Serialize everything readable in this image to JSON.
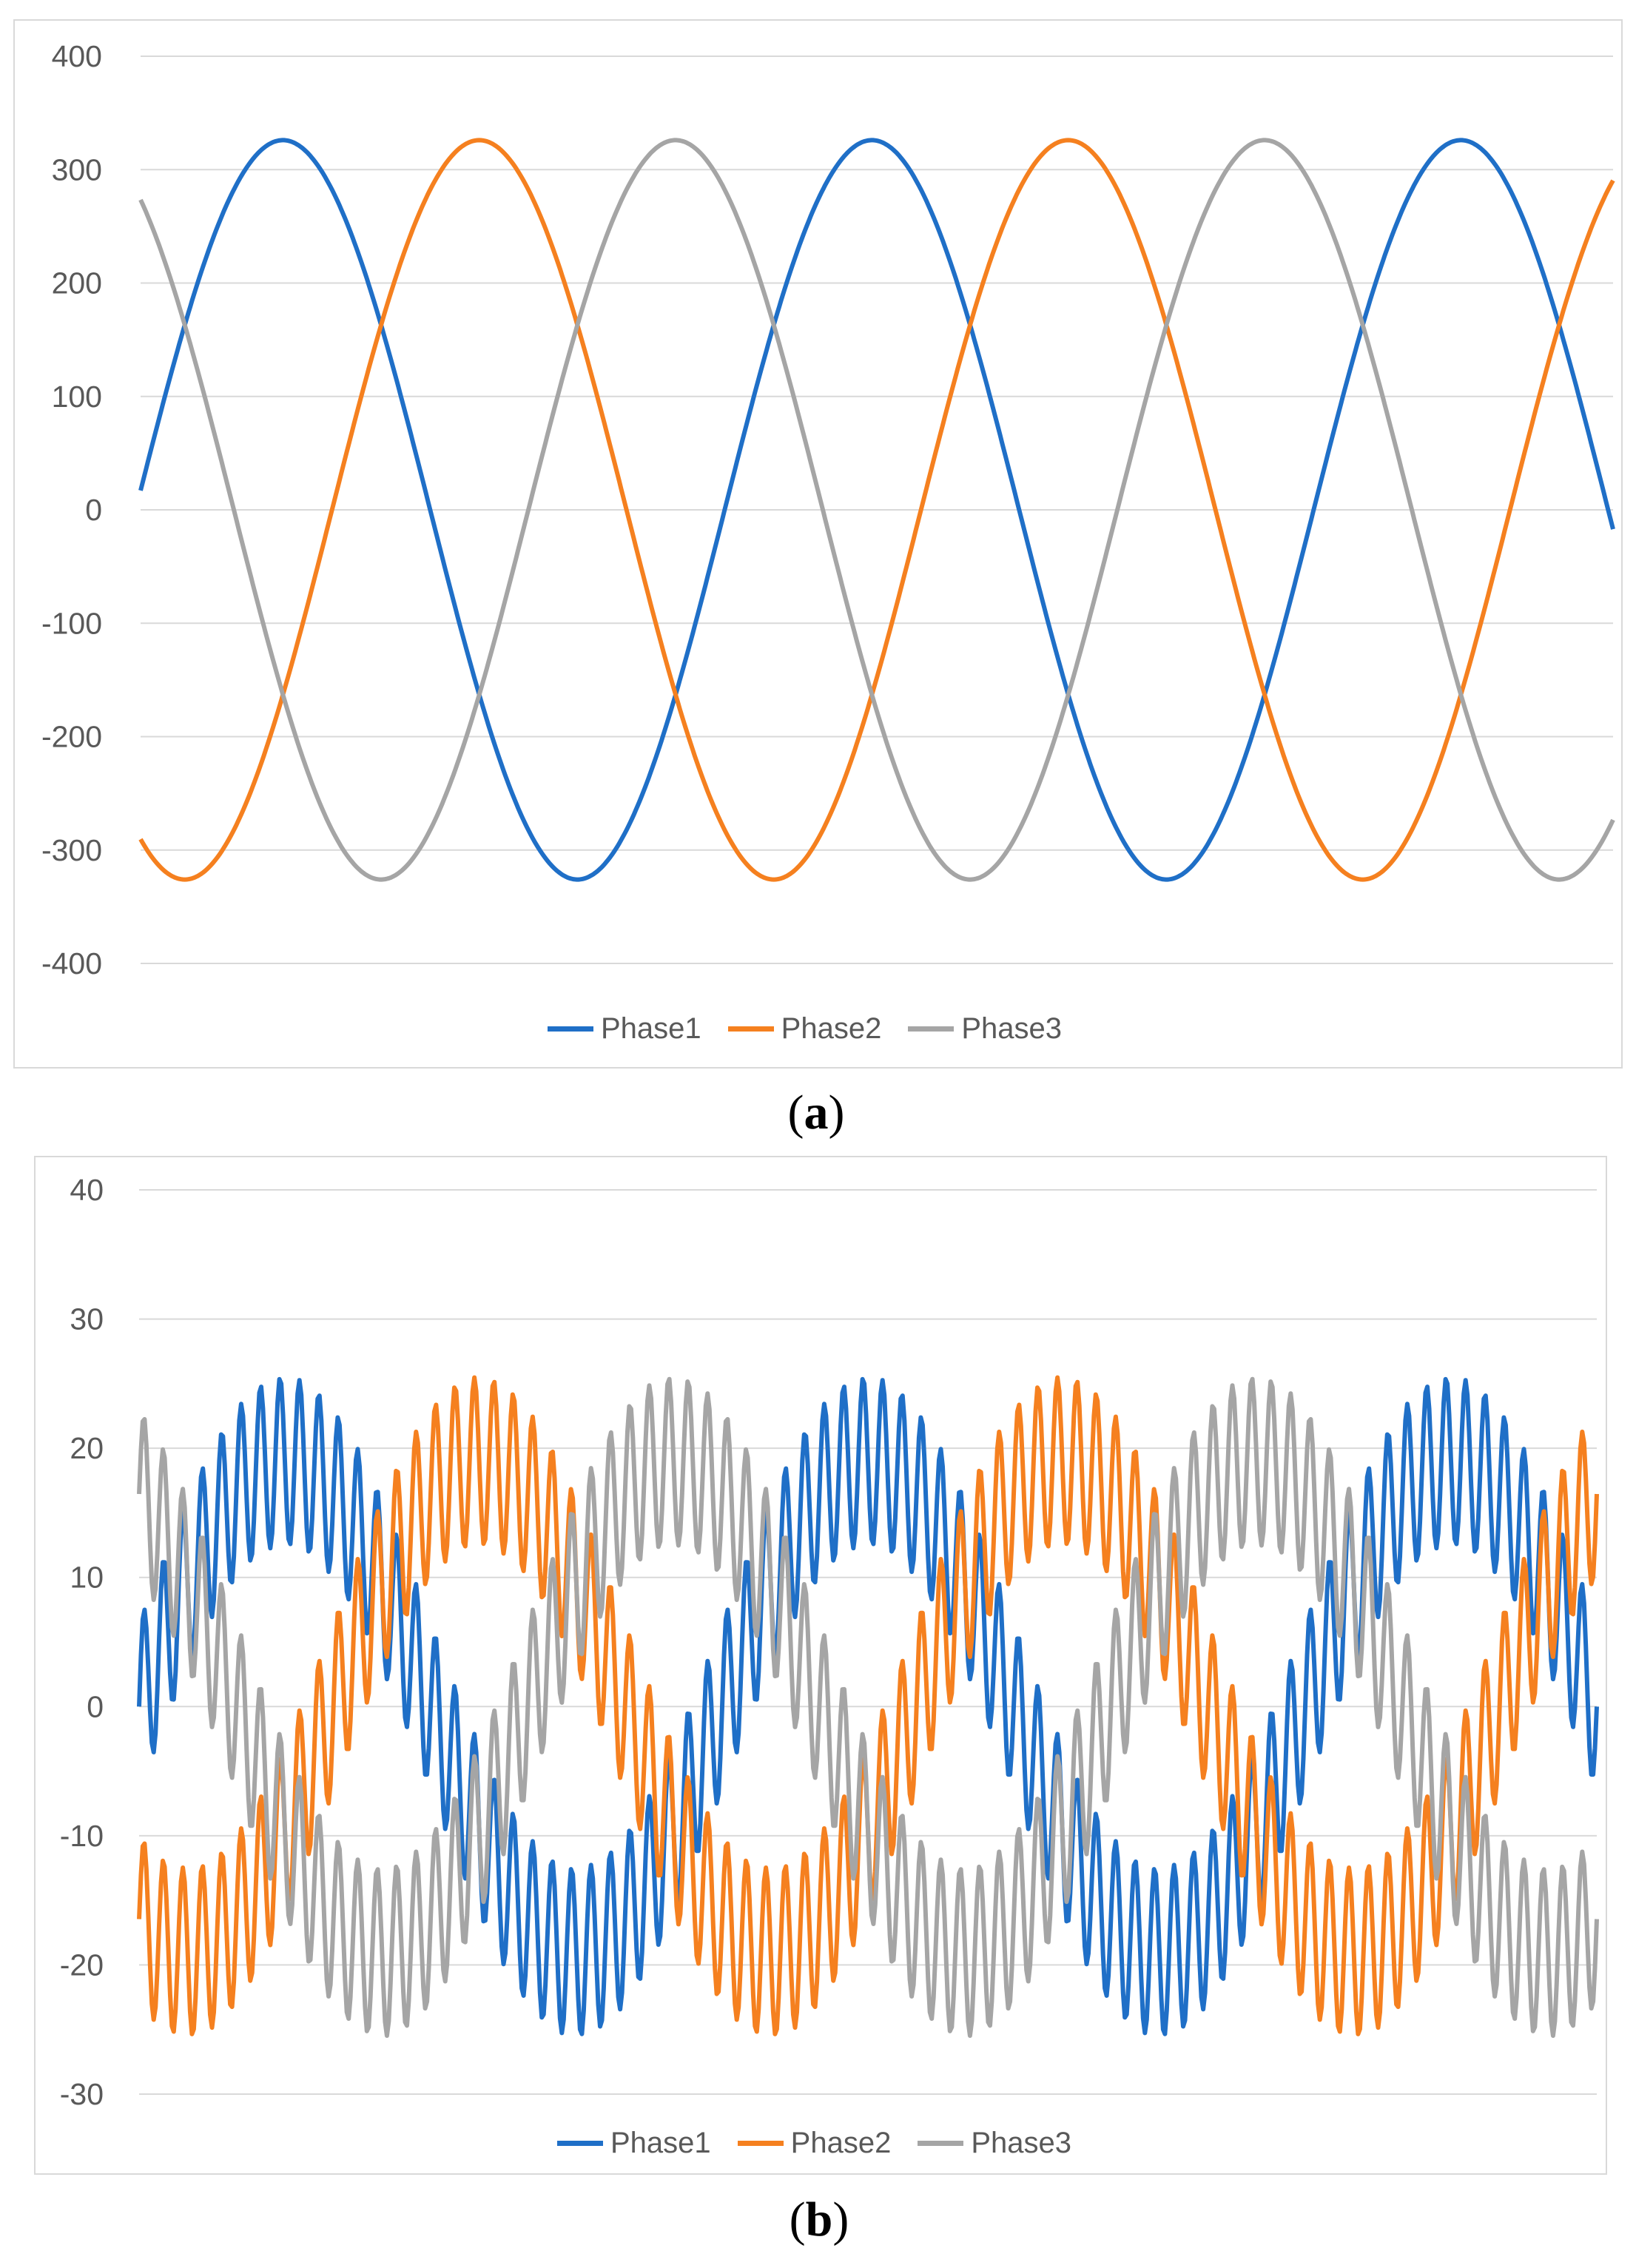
{
  "chart_data": [
    {
      "type": "line",
      "panel_label": "a",
      "title": "",
      "xlabel": "",
      "ylabel": "",
      "ylim": [
        -400,
        400
      ],
      "yticks": [
        400,
        300,
        200,
        100,
        0,
        -100,
        -200,
        -300,
        -400
      ],
      "grid": true,
      "legend": "bottom-center",
      "x_range": [
        0,
        2.5
      ],
      "series": [
        {
          "name": "Phase1",
          "color": "#1f6fc7",
          "amplitude": 326,
          "phase_deg": 3,
          "ripple_amplitude": 0,
          "ripple_cycles": 0
        },
        {
          "name": "Phase2",
          "color": "#f5801f",
          "amplitude": 326,
          "phase_deg": -117,
          "ripple_amplitude": 0,
          "ripple_cycles": 0
        },
        {
          "name": "Phase3",
          "color": "#a5a5a5",
          "amplitude": 326,
          "phase_deg": 123,
          "ripple_amplitude": 0,
          "ripple_cycles": 0
        }
      ]
    },
    {
      "type": "line",
      "panel_label": "b",
      "title": "",
      "xlabel": "",
      "ylabel": "",
      "ylim": [
        -30,
        40
      ],
      "yticks": [
        40,
        30,
        20,
        10,
        0,
        -10,
        -20,
        -30
      ],
      "grid": true,
      "legend": "bottom-center",
      "x_range": [
        0,
        2.5
      ],
      "series": [
        {
          "name": "Phase1",
          "color": "#1f6fc7",
          "amplitude": 19,
          "phase_deg": 0,
          "ripple_amplitude": 6.5,
          "ripple_cycles": 30
        },
        {
          "name": "Phase2",
          "color": "#f5801f",
          "amplitude": 19,
          "phase_deg": -120,
          "ripple_amplitude": 6.5,
          "ripple_cycles": 30
        },
        {
          "name": "Phase3",
          "color": "#a5a5a5",
          "amplitude": 19,
          "phase_deg": 120,
          "ripple_amplitude": 6.5,
          "ripple_cycles": 30
        }
      ]
    }
  ]
}
